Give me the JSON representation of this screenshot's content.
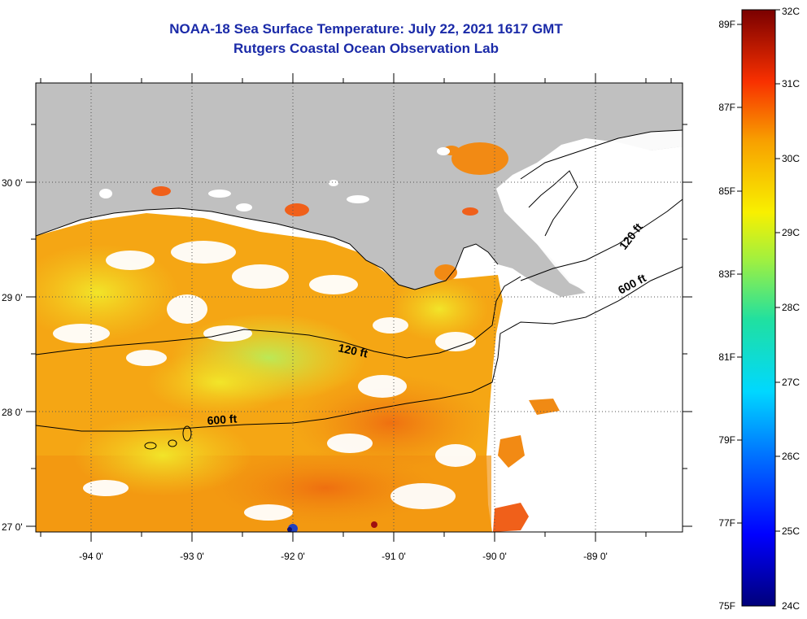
{
  "title": {
    "line1": "NOAA-18 Sea Surface Temperature:  July 22, 2021 1617 GMT",
    "line2": "Rutgers Coastal Ocean Observation Lab"
  },
  "map": {
    "lat_labels": [
      "30 0'",
      "29 0'",
      "28 0'",
      "27 0'"
    ],
    "lon_labels": [
      "-94 0'",
      "-93 0'",
      "-92 0'",
      "-91 0'",
      "-90 0'",
      "-89 0'"
    ],
    "contours": {
      "c120_west": "120 ft",
      "c600_west": "600 ft",
      "c120_east": "120 ft",
      "c600_east": "600 ft"
    },
    "colors": {
      "land": "#c0c0c0",
      "cloud": "#ffffff",
      "sst_warm": "#f5a614",
      "sst_hot": "#f07a10",
      "sst_mid": "#f2e020"
    }
  },
  "colorbar": {
    "fahrenheit": [
      "89F",
      "87F",
      "85F",
      "83F",
      "81F",
      "79F",
      "77F",
      "75F"
    ],
    "celsius": [
      "32C",
      "31C",
      "30C",
      "29C",
      "28C",
      "27C",
      "26C",
      "25C",
      "24C"
    ]
  }
}
